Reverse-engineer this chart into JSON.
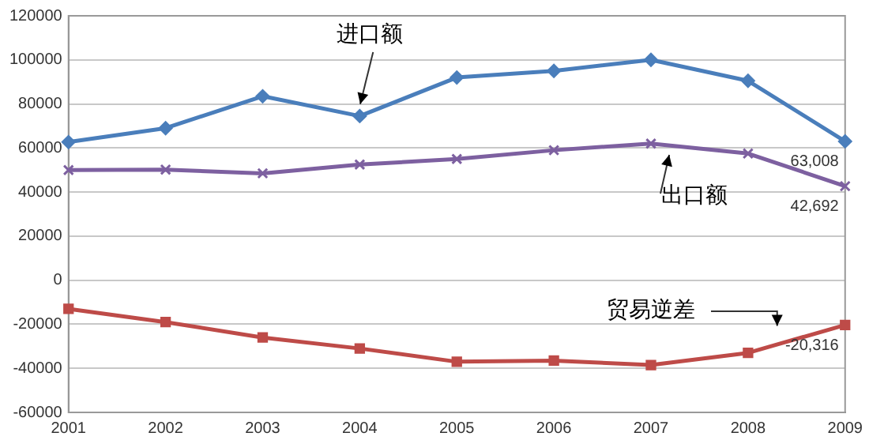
{
  "chart_data": {
    "type": "line",
    "categories": [
      "2001",
      "2002",
      "2003",
      "2004",
      "2005",
      "2006",
      "2007",
      "2008",
      "2009"
    ],
    "series": [
      {
        "name": "进口额",
        "color": "#4a7ebb",
        "marker": "diamond",
        "values": [
          62700,
          69000,
          83500,
          74500,
          92000,
          95000,
          100000,
          90500,
          63008
        ],
        "value_labels": [
          null,
          null,
          null,
          null,
          null,
          null,
          null,
          null,
          "63,008"
        ]
      },
      {
        "name": "出口额",
        "color": "#7d60a0",
        "marker": "cross",
        "values": [
          50000,
          50200,
          48500,
          52500,
          55000,
          59000,
          62000,
          57500,
          42692
        ],
        "value_labels": [
          null,
          null,
          null,
          null,
          null,
          null,
          null,
          null,
          "42,692"
        ]
      },
      {
        "name": "贸易逆差",
        "color": "#be4b48",
        "marker": "square",
        "values": [
          -13000,
          -19000,
          -26000,
          -31000,
          -37000,
          -36500,
          -38500,
          -33000,
          -20316
        ],
        "value_labels": [
          null,
          null,
          null,
          null,
          null,
          null,
          null,
          null,
          "-20,316"
        ]
      }
    ],
    "ylim": [
      -60000,
      120000
    ],
    "yticks": [
      -60000,
      -40000,
      -20000,
      0,
      20000,
      40000,
      60000,
      80000,
      100000,
      120000
    ],
    "grid": "y",
    "legend": false
  }
}
